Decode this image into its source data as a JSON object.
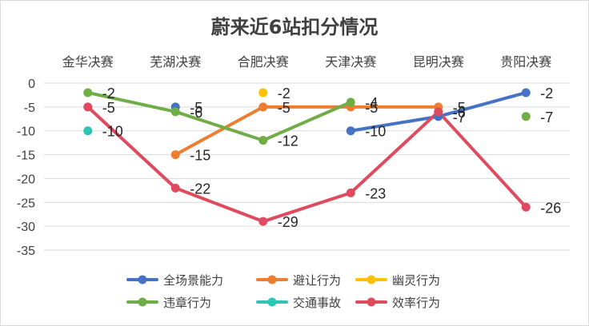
{
  "chart_data": {
    "type": "line",
    "title": "蔚来近6站扣分情况",
    "categories": [
      "金华决赛",
      "芜湖决赛",
      "合肥决赛",
      "天津决赛",
      "昆明决赛",
      "贵阳决赛"
    ],
    "ylim": [
      -35,
      0
    ],
    "yticks": [
      0,
      -5,
      -10,
      -15,
      -20,
      -25,
      -30,
      -35
    ],
    "grid": true,
    "legend_position": "bottom",
    "series": [
      {
        "name": "全场景能力",
        "color": "#4472c4",
        "values": [
          null,
          -5,
          null,
          -10,
          -7,
          -2
        ]
      },
      {
        "name": "避让行为",
        "color": "#ed7d31",
        "values": [
          null,
          -15,
          -5,
          -5,
          -5,
          null
        ]
      },
      {
        "name": "幽灵行为",
        "color": "#ffc000",
        "values": [
          null,
          null,
          -2,
          null,
          null,
          null
        ]
      },
      {
        "name": "违章行为",
        "color": "#70ad47",
        "values": [
          -2,
          -6,
          -12,
          -4,
          null,
          -7
        ]
      },
      {
        "name": "交通事故",
        "color": "#2ec4b6",
        "values": [
          -10,
          null,
          null,
          null,
          null,
          null
        ]
      },
      {
        "name": "效率行为",
        "color": "#e04a5f",
        "values": [
          -5,
          -22,
          -29,
          -23,
          -6,
          -26
        ]
      }
    ]
  }
}
